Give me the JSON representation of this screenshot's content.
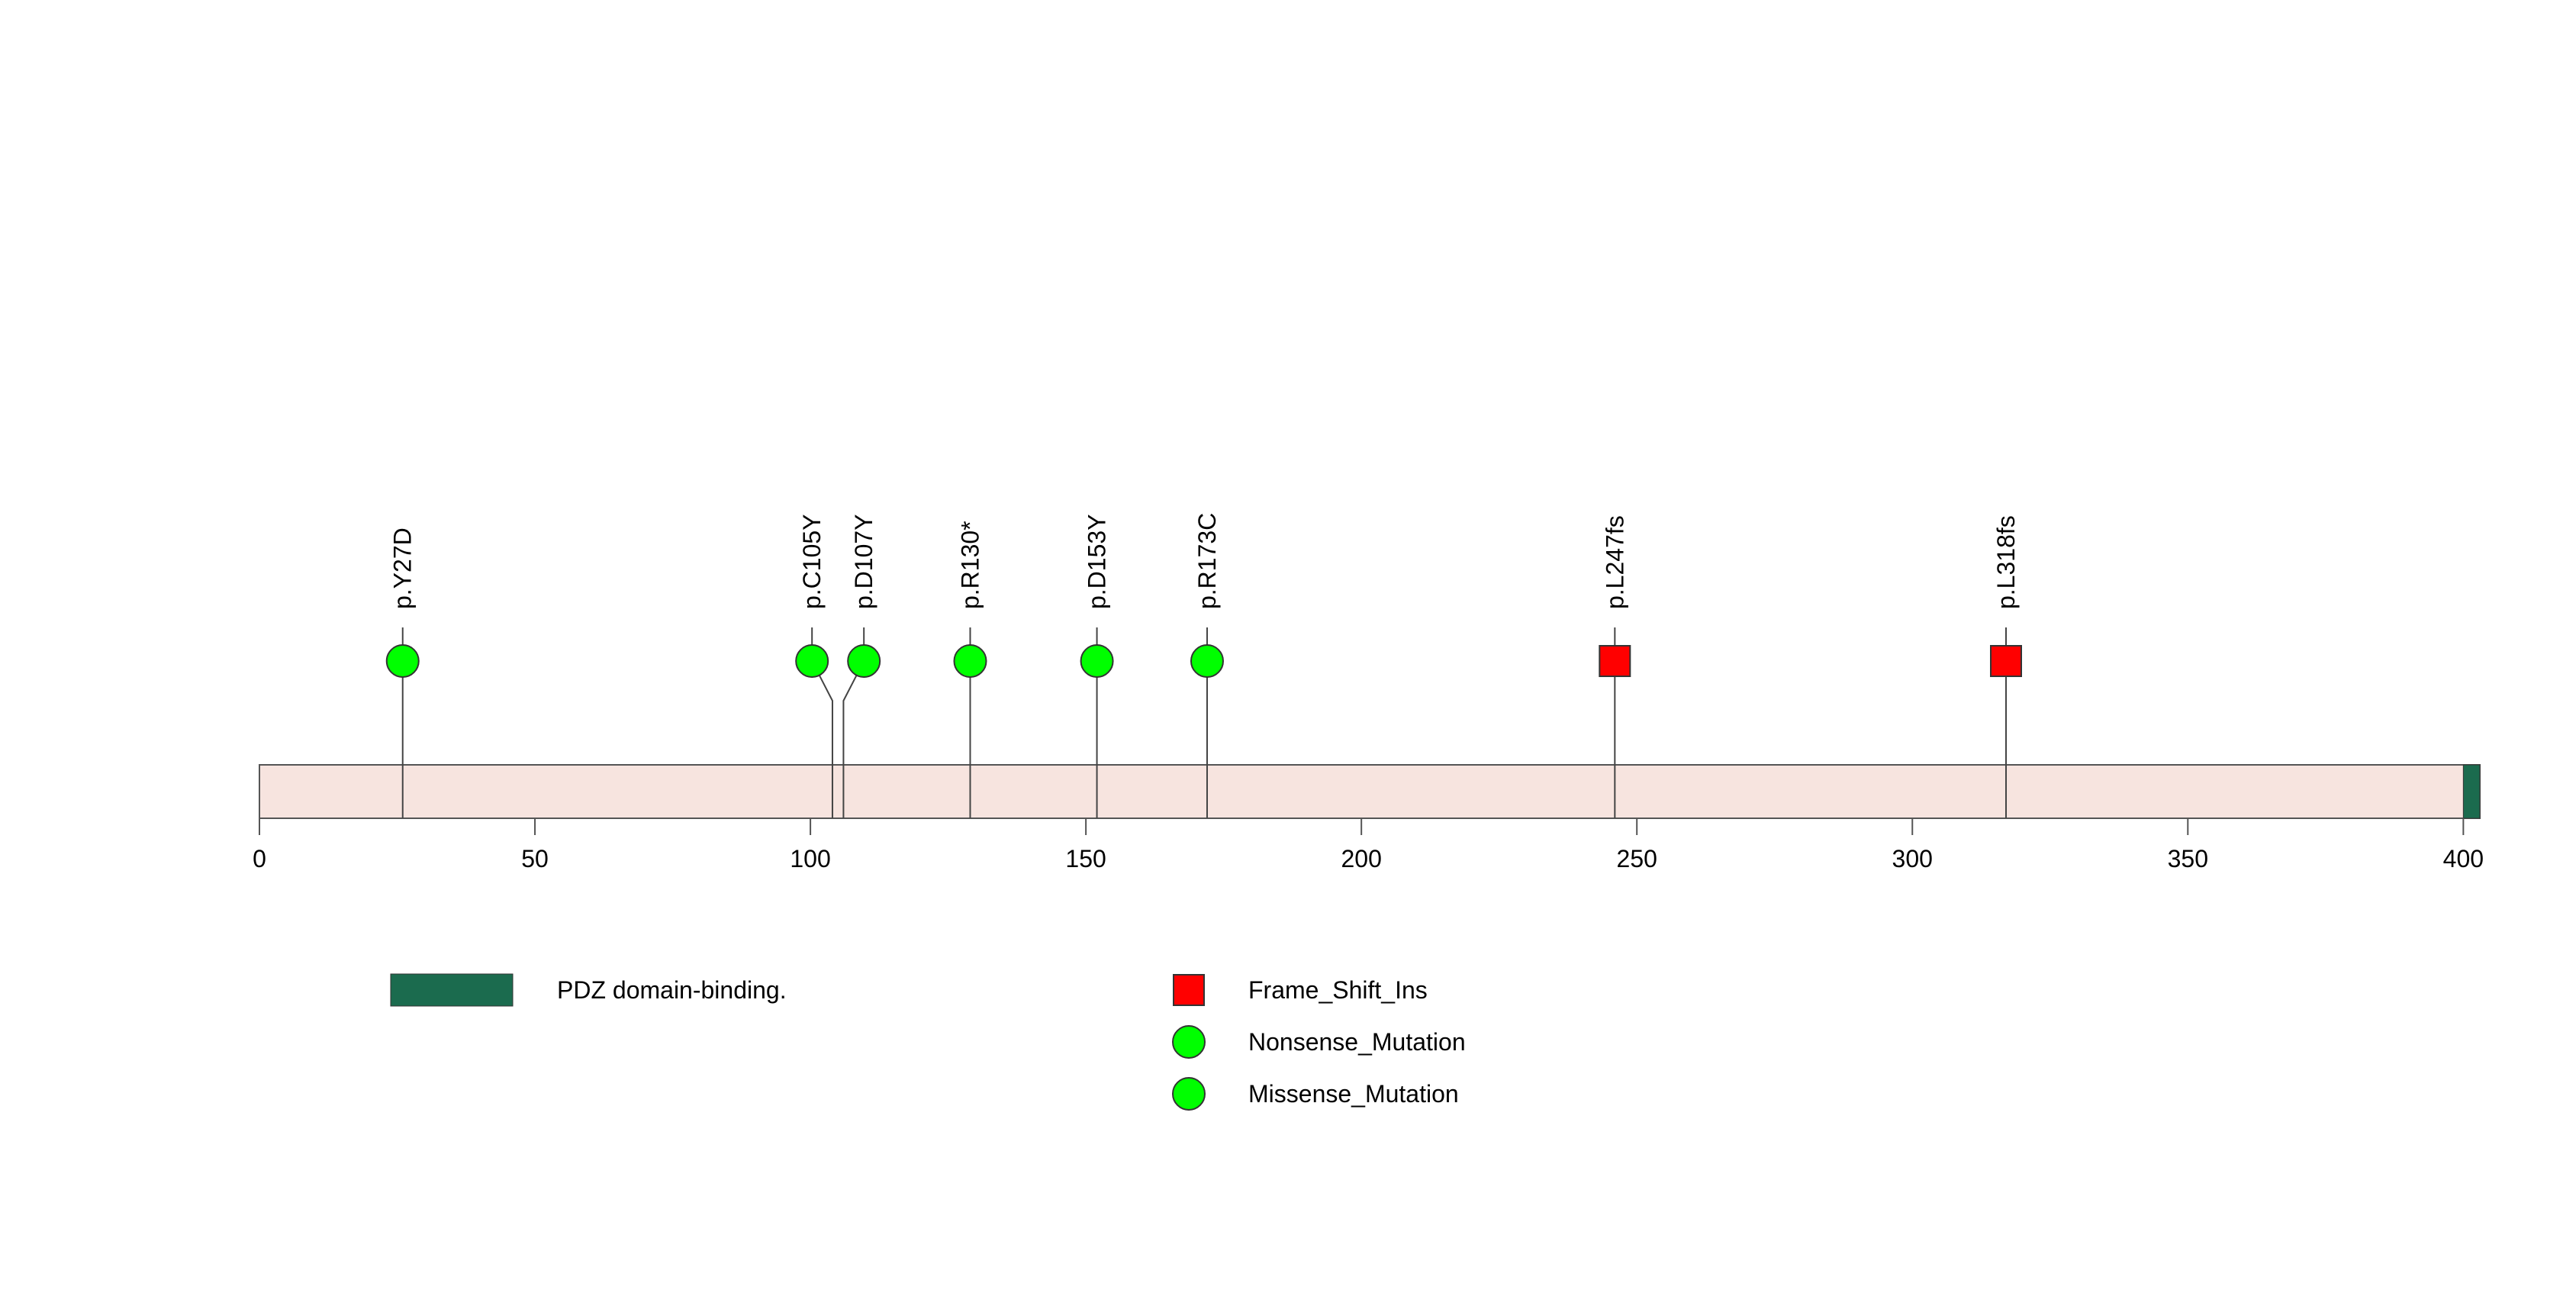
{
  "chart_data": {
    "type": "lollipop",
    "title": "",
    "xlabel": "",
    "ylabel": "",
    "xlim": [
      0,
      403
    ],
    "x_ticks": [
      0,
      50,
      100,
      150,
      200,
      250,
      300,
      350,
      400
    ],
    "protein_length": 403,
    "domains": [
      {
        "name": "PDZ domain-binding.",
        "start": 400,
        "end": 403,
        "color": "#1b6b4e"
      }
    ],
    "mutations": [
      {
        "label": "p.Y27D",
        "position": 26,
        "type": "Missense_Mutation"
      },
      {
        "label": "p.C105Y",
        "position": 104,
        "type": "Missense_Mutation"
      },
      {
        "label": "p.D107Y",
        "position": 106,
        "type": "Missense_Mutation"
      },
      {
        "label": "p.R130*",
        "position": 129,
        "type": "Nonsense_Mutation"
      },
      {
        "label": "p.D153Y",
        "position": 152,
        "type": "Missense_Mutation"
      },
      {
        "label": "p.R173C",
        "position": 172,
        "type": "Missense_Mutation"
      },
      {
        "label": "p.L247fs",
        "position": 246,
        "type": "Frame_Shift_Ins"
      },
      {
        "label": "p.L318fs",
        "position": 317,
        "type": "Frame_Shift_Ins"
      }
    ],
    "legend": {
      "placement": "bottom",
      "domains": [
        {
          "label": "PDZ domain-binding.",
          "color": "#1b6b4e"
        }
      ],
      "mutation_types": [
        {
          "label": "Frame_Shift_Ins",
          "shape": "square",
          "color": "#ff0000"
        },
        {
          "label": "Nonsense_Mutation",
          "shape": "circle",
          "color": "#00ff00"
        },
        {
          "label": "Missense_Mutation",
          "shape": "circle",
          "color": "#00ff00"
        }
      ]
    },
    "colors": {
      "protein_backbone": "#f7e4df",
      "frame_shift": "#ff0000",
      "point_mutation": "#00ff00"
    }
  }
}
